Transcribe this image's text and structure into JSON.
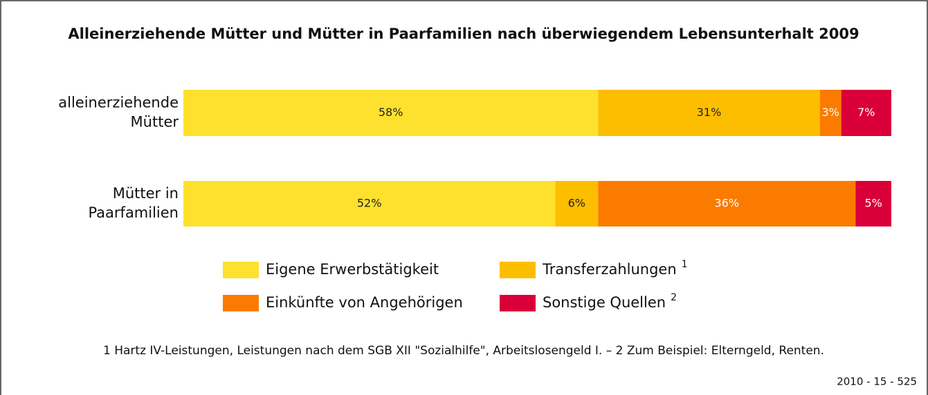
{
  "chart_data": {
    "type": "stacked_bar_horizontal",
    "title": "Alleinerziehende Mütter und Mütter in Paarfamilien nach überwiegendem Lebensunterhalt 2009",
    "categories": [
      [
        "alleinerziehende",
        "Mütter"
      ],
      [
        "Mütter in",
        "Paarfamilien"
      ]
    ],
    "series": [
      {
        "name": "Eigene Erwerbstätigkeit",
        "color": "#fde12e",
        "label_color": "#222222",
        "values": [
          58,
          52
        ],
        "value_labels": [
          "58%",
          "52%"
        ]
      },
      {
        "name": "Transferzahlungen",
        "footnote_ref": "1",
        "color": "#fdbe00",
        "label_color": "#222222",
        "values": [
          31,
          6
        ],
        "value_labels": [
          "31%",
          "6%"
        ]
      },
      {
        "name": "Einkünfte von Angehörigen",
        "color": "#fb7b00",
        "label_color": "#ffffff",
        "values": [
          3,
          36
        ],
        "value_labels": [
          "3%",
          "36%"
        ]
      },
      {
        "name": "Sonstige Quellen",
        "footnote_ref": "2",
        "color": "#d9003a",
        "label_color": "#ffffff",
        "values": [
          7,
          5
        ],
        "value_labels": [
          "7%",
          "5%"
        ]
      }
    ],
    "footnote": "1 Hartz IV-Leistungen, Leistungen nach dem SGB XII \"Sozialhilfe\", Arbeitslosengeld I. – 2 Zum Beispiel: Elterngeld, Renten.",
    "source": "2010 - 15 - 525"
  }
}
